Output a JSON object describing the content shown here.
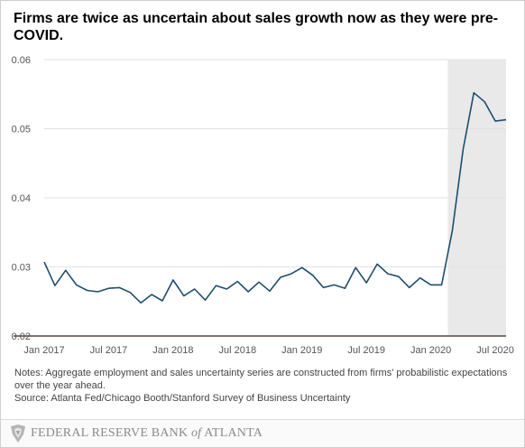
{
  "title": "Firms are twice as uncertain about sales growth now as they were pre-COVID.",
  "notes": {
    "line1": "Notes: Aggregate employment and sales uncertainty series are constructed from firms' probabilistic expectations over the year ahead.",
    "line2": "Source: Atlanta Fed/Chicago Booth/Stanford Survey of Business Uncertainty"
  },
  "footer": {
    "org_part1": "FEDERAL RESERVE BANK",
    "org_of": "of",
    "org_part2": "ATLANTA"
  },
  "colors": {
    "line": "#1d4e6e",
    "shade": "#e9e9e9",
    "grid": "#e2e2e2",
    "axis": "#5a4535"
  },
  "chart_data": {
    "type": "line",
    "title": "Firms are twice as uncertain about sales growth now as they were pre-COVID.",
    "xlabel": "",
    "ylabel": "",
    "ylim": [
      0.02,
      0.06
    ],
    "yticks": [
      0.02,
      0.03,
      0.04,
      0.05,
      0.06
    ],
    "ytick_labels": [
      "0.02",
      "0.03",
      "0.04",
      "0.05",
      "0.06"
    ],
    "xlim": [
      "2017-01",
      "2020-08"
    ],
    "xticks": [
      "2017-01",
      "2017-07",
      "2018-01",
      "2018-07",
      "2019-01",
      "2019-07",
      "2020-01",
      "2020-07"
    ],
    "xtick_labels": [
      "Jan 2017",
      "Jul 2017",
      "Jan 2018",
      "Jul 2018",
      "Jan 2019",
      "Jul 2019",
      "Jan 2020",
      "Jul 2020"
    ],
    "grid": true,
    "shaded_region": [
      "2020-03",
      "2020-08"
    ],
    "series": [
      {
        "x": [
          "2017-01",
          "2017-02",
          "2017-03",
          "2017-04",
          "2017-05",
          "2017-06",
          "2017-07",
          "2017-08",
          "2017-09",
          "2017-10",
          "2017-11",
          "2017-12",
          "2018-01",
          "2018-02",
          "2018-03",
          "2018-04",
          "2018-05",
          "2018-06",
          "2018-07",
          "2018-08",
          "2018-09",
          "2018-10",
          "2018-11",
          "2018-12",
          "2019-01",
          "2019-02",
          "2019-03",
          "2019-04",
          "2019-05",
          "2019-06",
          "2019-07",
          "2019-08",
          "2019-09",
          "2019-10",
          "2019-11",
          "2019-12",
          "2020-01",
          "2020-02",
          "2020-03",
          "2020-04",
          "2020-05",
          "2020-06",
          "2020-07",
          "2020-08"
        ],
        "values": [
          0.0307,
          0.0273,
          0.0295,
          0.0274,
          0.0266,
          0.0264,
          0.0269,
          0.027,
          0.0263,
          0.0248,
          0.026,
          0.0251,
          0.0281,
          0.0258,
          0.0268,
          0.0252,
          0.0273,
          0.0268,
          0.0279,
          0.0264,
          0.0278,
          0.0265,
          0.0285,
          0.029,
          0.0299,
          0.0288,
          0.027,
          0.0274,
          0.0269,
          0.0299,
          0.0277,
          0.0304,
          0.029,
          0.0286,
          0.027,
          0.0284,
          0.0274,
          0.0274,
          0.0353,
          0.047,
          0.0552,
          0.0539,
          0.0511,
          0.0513
        ]
      }
    ]
  }
}
